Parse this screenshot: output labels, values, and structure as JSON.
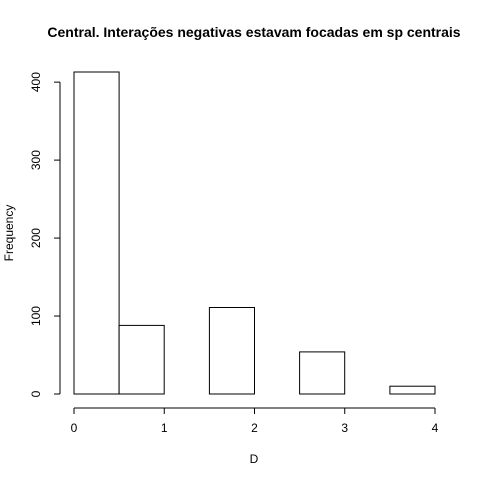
{
  "chart_data": {
    "type": "bar",
    "title": "Central. Interações negativas estavam focadas em sp centrais",
    "xlabel": "D",
    "ylabel": "Frequency",
    "bins": [
      {
        "from": 0.0,
        "to": 0.5,
        "count": 413
      },
      {
        "from": 0.5,
        "to": 1.0,
        "count": 88
      },
      {
        "from": 1.0,
        "to": 1.5,
        "count": 0
      },
      {
        "from": 1.5,
        "to": 2.0,
        "count": 111
      },
      {
        "from": 2.0,
        "to": 2.5,
        "count": 0
      },
      {
        "from": 2.5,
        "to": 3.0,
        "count": 54
      },
      {
        "from": 3.0,
        "to": 3.5,
        "count": 0
      },
      {
        "from": 3.5,
        "to": 4.0,
        "count": 10
      }
    ],
    "xlim": [
      0,
      4
    ],
    "ylim": [
      0,
      413
    ],
    "x_ticks": [
      "0",
      "1",
      "2",
      "3",
      "4"
    ],
    "y_ticks": [
      "0",
      "100",
      "200",
      "300",
      "400"
    ],
    "grid": false,
    "colors": {
      "bar_fill": "#ffffff",
      "bar_stroke": "#000000"
    }
  }
}
